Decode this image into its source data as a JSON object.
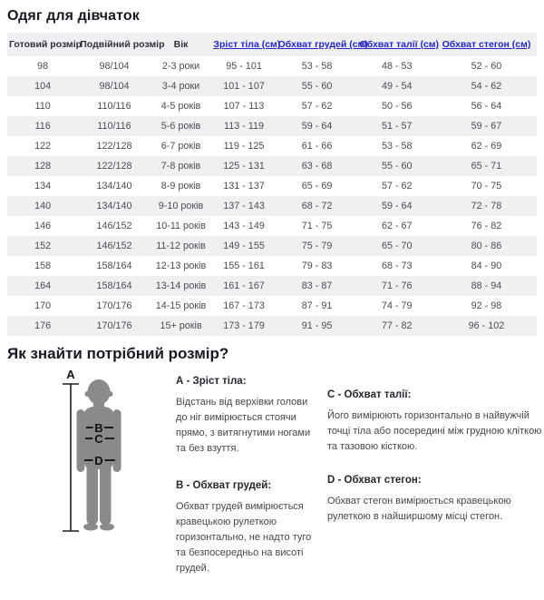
{
  "title": "Одяг для дівчаток",
  "table": {
    "columns": [
      {
        "label": "Готовий розмір",
        "link": false
      },
      {
        "label": "Подвійний розмір",
        "link": false
      },
      {
        "label": "Вік",
        "link": false
      },
      {
        "label": "Зріст тіла (см)",
        "link": true
      },
      {
        "label": "Обхват грудей (см)",
        "link": true
      },
      {
        "label": "Обхват талії (см)",
        "link": true
      },
      {
        "label": "Обхват стегон (см)",
        "link": true
      }
    ],
    "rows": [
      [
        "98",
        "98/104",
        "2-3 роки",
        "95 - 101",
        "53 - 58",
        "48 - 53",
        "52 - 60"
      ],
      [
        "104",
        "98/104",
        "3-4 роки",
        "101 - 107",
        "55 - 60",
        "49 - 54",
        "54 - 62"
      ],
      [
        "110",
        "110/116",
        "4-5 років",
        "107 - 113",
        "57 - 62",
        "50 - 56",
        "56 - 64"
      ],
      [
        "116",
        "110/116",
        "5-6 років",
        "113 - 119",
        "59 - 64",
        "51 - 57",
        "59 - 67"
      ],
      [
        "122",
        "122/128",
        "6-7 років",
        "119 - 125",
        "61 - 66",
        "53 - 58",
        "62 - 69"
      ],
      [
        "128",
        "122/128",
        "7-8 років",
        "125 - 131",
        "63 - 68",
        "55 - 60",
        "65 - 71"
      ],
      [
        "134",
        "134/140",
        "8-9 років",
        "131 - 137",
        "65 - 69",
        "57 - 62",
        "70 - 75"
      ],
      [
        "140",
        "134/140",
        "9-10 років",
        "137 - 143",
        "68 - 72",
        "59 - 64",
        "72 - 78"
      ],
      [
        "146",
        "146/152",
        "10-11 років",
        "143 - 149",
        "71 - 75",
        "62 - 67",
        "76 - 82"
      ],
      [
        "152",
        "146/152",
        "11-12 років",
        "149 - 155",
        "75 - 79",
        "65 - 70",
        "80 - 86"
      ],
      [
        "158",
        "158/164",
        "12-13 років",
        "155 - 161",
        "79 - 83",
        "68 - 73",
        "84 - 90"
      ],
      [
        "164",
        "158/164",
        "13-14 років",
        "161 - 167",
        "83 - 87",
        "71 - 76",
        "88 - 94"
      ],
      [
        "170",
        "170/176",
        "14-15 років",
        "167 - 173",
        "87 - 91",
        "74 - 79",
        "92 - 98"
      ],
      [
        "176",
        "170/176",
        "15+ років",
        "173 - 179",
        "91 - 95",
        "77 - 82",
        "96 - 102"
      ]
    ]
  },
  "guide": {
    "title": "Як знайти потрібний розмір?",
    "diagram_labels": {
      "a": "A",
      "b": "B",
      "c": "C",
      "d": "D"
    },
    "items": [
      {
        "heading": "А - Зріст тіла:",
        "text": "Відстань від верхівки голови до ніг вимірюється стоячи прямо, з витягнутими ногами та без взуття."
      },
      {
        "heading": "B - Обхват грудей:",
        "text": "Обхват грудей вимірюється кравецькою рулеткою горизонтально, не надто туго та безпосередньо на висоті грудей."
      },
      {
        "heading": "C - Обхват талії:",
        "text": "Його вимірюють горизонтально в найвужчій точці тіла або посередині між грудною кліткою та тазовою кісткою."
      },
      {
        "heading": "D - Обхват стегон:",
        "text": "Обхват стегон вимірюється кравецькою рулеткою в найширшому місці стегон."
      }
    ]
  },
  "colors": {
    "link_blue": "#2525c6",
    "row_stripe": "#f0f0f2",
    "title_text": "#191922",
    "body_text": "#4c4c52",
    "silhouette_gray": "#8a8a8a",
    "diagram_line": "#1c1c1c"
  }
}
